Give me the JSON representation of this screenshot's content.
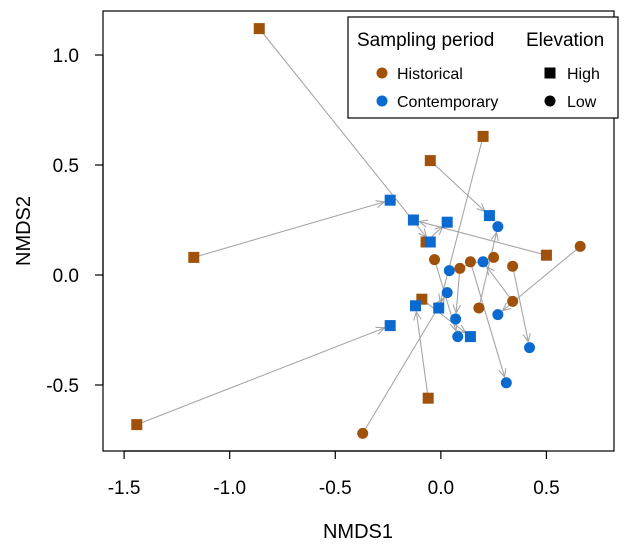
{
  "chart_data": {
    "type": "scatter",
    "xlabel": "NMDS1",
    "ylabel": "NMDS2",
    "xlim": [
      -1.6,
      0.82
    ],
    "ylim": [
      -0.8,
      1.2
    ],
    "xticks": [
      "-1.5",
      "-1.0",
      "-0.5",
      "0.0",
      "0.5"
    ],
    "xtick_values": [
      -1.5,
      -1.0,
      -0.5,
      0.0,
      0.5
    ],
    "yticks": [
      "-0.5",
      "0.0",
      "0.5",
      "1.0"
    ],
    "ytick_values": [
      -0.5,
      0.0,
      0.5,
      1.0
    ],
    "grid": false,
    "legend": {
      "placement": "top-right",
      "period_title": "Sampling period",
      "elevation_title": "Elevation",
      "historical_label": "Historical",
      "contemporary_label": "Contemporary",
      "high_label": "High",
      "low_label": "Low"
    },
    "colors": {
      "historical": "#A0520A",
      "contemporary": "#0A6AD0",
      "arrow": "#a6a6a6"
    },
    "pairs": [
      {
        "elevation": "high",
        "historical": [
          -0.86,
          1.12
        ],
        "contemporary": [
          -0.05,
          0.15
        ]
      },
      {
        "elevation": "high",
        "historical": [
          -1.17,
          0.08
        ],
        "contemporary": [
          -0.24,
          0.34
        ]
      },
      {
        "elevation": "high",
        "historical": [
          -1.44,
          -0.68
        ],
        "contemporary": [
          -0.24,
          -0.23
        ]
      },
      {
        "elevation": "high",
        "historical": [
          -0.05,
          0.52
        ],
        "contemporary": [
          0.23,
          0.27
        ]
      },
      {
        "elevation": "high",
        "historical": [
          0.2,
          0.63
        ],
        "contemporary": [
          -0.01,
          -0.15
        ]
      },
      {
        "elevation": "high",
        "historical": [
          -0.06,
          -0.56
        ],
        "contemporary": [
          -0.12,
          -0.14
        ]
      },
      {
        "elevation": "high",
        "historical": [
          -0.09,
          -0.11
        ],
        "contemporary": [
          0.14,
          -0.28
        ]
      },
      {
        "elevation": "high",
        "historical": [
          0.5,
          0.09
        ],
        "contemporary": [
          -0.13,
          0.25
        ]
      },
      {
        "elevation": "high",
        "historical": [
          -0.07,
          0.15
        ],
        "contemporary": [
          0.03,
          0.24
        ]
      },
      {
        "elevation": "low",
        "historical": [
          -0.37,
          -0.72
        ],
        "contemporary": [
          0.03,
          -0.08
        ]
      },
      {
        "elevation": "low",
        "historical": [
          -0.03,
          0.07
        ],
        "contemporary": [
          0.08,
          -0.28
        ]
      },
      {
        "elevation": "low",
        "historical": [
          0.09,
          0.03
        ],
        "contemporary": [
          0.07,
          -0.2
        ]
      },
      {
        "elevation": "low",
        "historical": [
          0.14,
          0.06
        ],
        "contemporary": [
          0.31,
          -0.49
        ]
      },
      {
        "elevation": "low",
        "historical": [
          0.25,
          0.08
        ],
        "contemporary": [
          0.04,
          0.02
        ]
      },
      {
        "elevation": "low",
        "historical": [
          0.18,
          -0.15
        ],
        "contemporary": [
          0.27,
          0.22
        ]
      },
      {
        "elevation": "low",
        "historical": [
          0.34,
          -0.12
        ],
        "contemporary": [
          0.2,
          0.06
        ]
      },
      {
        "elevation": "low",
        "historical": [
          0.34,
          0.04
        ],
        "contemporary": [
          0.42,
          -0.33
        ]
      },
      {
        "elevation": "low",
        "historical": [
          0.66,
          0.13
        ],
        "contemporary": [
          0.27,
          -0.18
        ]
      }
    ]
  }
}
